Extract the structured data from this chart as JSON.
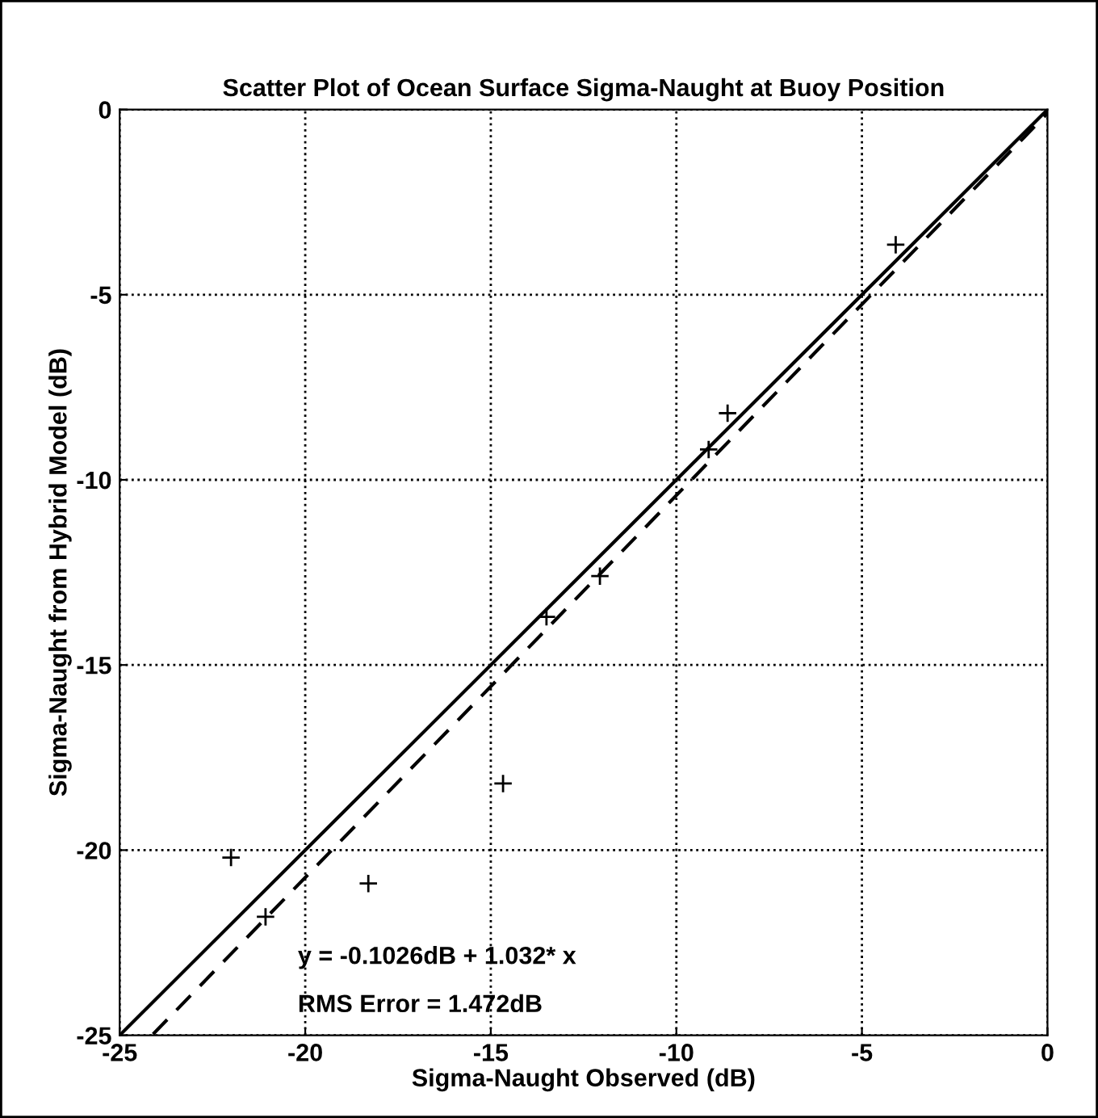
{
  "chart_data": {
    "type": "scatter",
    "title": "Scatter Plot of Ocean Surface Sigma-Naught at Buoy Position",
    "xlabel": "Sigma-Naught Observed (dB)",
    "ylabel": "Sigma-Naught from Hybrid Model (dB)",
    "x": [
      -22.0,
      -21.07,
      -18.3,
      -14.67,
      -13.5,
      -12.06,
      -9.13,
      -8.62,
      -4.09
    ],
    "series": [
      {
        "color": "#000000",
        "marker": "cross",
        "values": [
          -20.2,
          -21.8,
          -20.9,
          -18.2,
          -13.7,
          -12.6,
          -9.18,
          -8.2,
          -3.65
        ]
      },
      {
        "type": "line",
        "color": "#000000",
        "marker": "none",
        "line_style": "solid",
        "x": [
          -25,
          0
        ],
        "values": [
          -25,
          0
        ]
      },
      {
        "type": "line",
        "color": "#000000",
        "marker": "none",
        "line_style": "dashed",
        "x": [
          -24.1,
          0
        ],
        "values": [
          -24.97,
          -0.1
        ]
      }
    ],
    "annotations": [
      "y = -0.1026dB + 1.032* x",
      "RMS Error = 1.472dB"
    ],
    "xlim": [
      -25,
      0
    ],
    "ylim": [
      -25,
      0
    ],
    "xticks": [
      -25,
      -20,
      -15,
      -10,
      -5,
      0
    ],
    "yticks": [
      -25,
      -20,
      -15,
      -10,
      -5,
      0
    ],
    "grid": true
  }
}
